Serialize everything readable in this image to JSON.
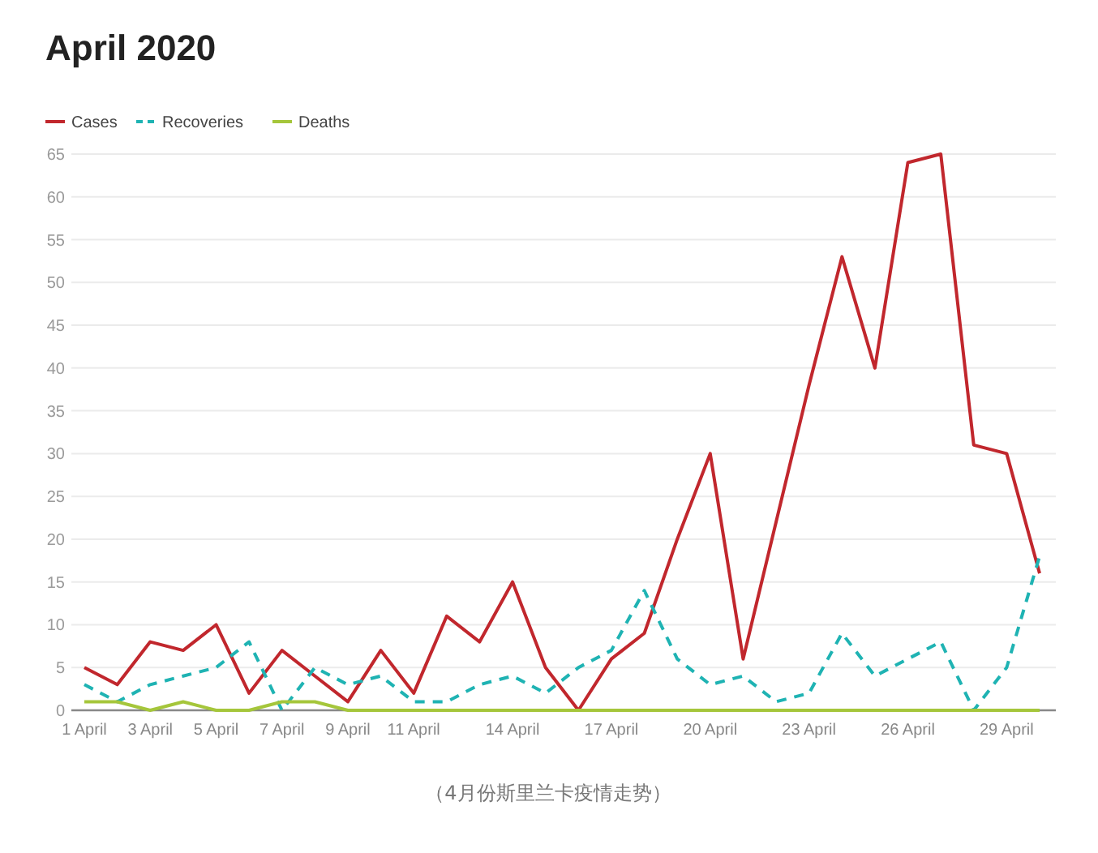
{
  "chart_data": {
    "type": "line",
    "title": "April 2020",
    "categories": [
      "1 April",
      null,
      "3 April",
      null,
      "5 April",
      null,
      "7 April",
      null,
      "9 April",
      null,
      "11 April",
      null,
      null,
      "14 April",
      null,
      null,
      "17 April",
      null,
      null,
      "20 April",
      null,
      null,
      "23 April",
      null,
      null,
      "26 April",
      null,
      null,
      "29 April",
      null
    ],
    "series": [
      {
        "name": "Cases",
        "color": "#c1272d",
        "values": [
          5,
          3,
          8,
          7,
          10,
          2,
          7,
          4,
          1,
          7,
          2,
          11,
          8,
          15,
          5,
          0,
          6,
          9,
          20,
          30,
          6,
          22,
          38,
          53,
          40,
          64,
          65,
          31,
          30,
          16
        ]
      },
      {
        "name": "Recoveries",
        "color": "#1fb3b3",
        "line_style": "dashed",
        "values": [
          3,
          1,
          3,
          4,
          5,
          8,
          0,
          5,
          3,
          4,
          1,
          1,
          3,
          4,
          2,
          5,
          7,
          14,
          6,
          3,
          4,
          1,
          2,
          9,
          4,
          6,
          8,
          0,
          5,
          18
        ]
      },
      {
        "name": "Deaths",
        "color": "#a5c63b",
        "values": [
          1,
          1,
          0,
          1,
          0,
          0,
          1,
          1,
          0,
          0,
          0,
          0,
          0,
          0,
          0,
          0,
          0,
          0,
          0,
          0,
          0,
          0,
          0,
          0,
          0,
          0,
          0,
          0,
          0,
          0
        ]
      }
    ],
    "ylim": [
      0,
      65
    ],
    "yticks": [
      0,
      5,
      10,
      15,
      20,
      25,
      30,
      35,
      40,
      45,
      50,
      55,
      60,
      65
    ],
    "grid": "y",
    "legend": "top left",
    "annotations": [
      "（4月份斯里兰卡疫情走势）"
    ]
  }
}
